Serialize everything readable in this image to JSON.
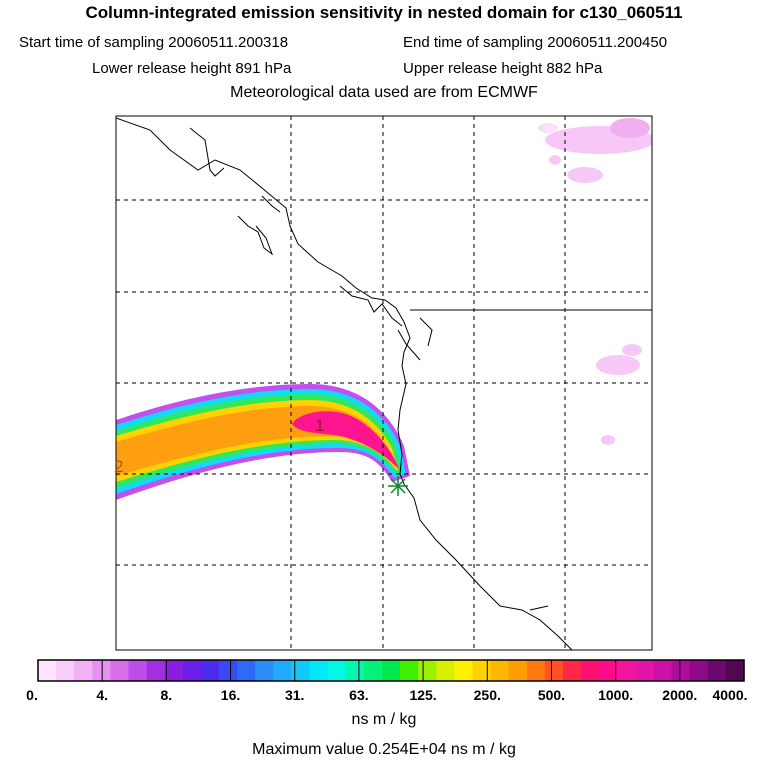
{
  "header": {
    "title": "Column-integrated emission sensitivity in nested domain for c130_060511",
    "sampling_start_label": "Start time of sampling 20060511.200318",
    "sampling_end_label": "End time of sampling 20060511.200450",
    "lower_release_label": "Lower release height  891 hPa",
    "upper_release_label": "Upper release height  882 hPa",
    "met_data_label": "Meteorological data used are from ECMWF"
  },
  "map": {
    "plume_markers": [
      "1",
      "2"
    ],
    "release_marker": "release-point-cross-icon"
  },
  "colorbar": {
    "colors": [
      "#fde3fd",
      "#f9cdf9",
      "#f3b2f5",
      "#e690f0",
      "#d66fe8",
      "#bb4fe8",
      "#a42ee0",
      "#8a1ee0",
      "#6a1ee6",
      "#4a2cee",
      "#3a4af2",
      "#2e6af5",
      "#2a8cf8",
      "#20aaf8",
      "#14c8f8",
      "#00e8f8",
      "#00f8e4",
      "#00f8b0",
      "#00f27a",
      "#00e850",
      "#40f000",
      "#9cf000",
      "#d6f000",
      "#fff000",
      "#ffd200",
      "#ffb800",
      "#ff9c00",
      "#ff7a10",
      "#ff5028",
      "#ff2848",
      "#ff1070",
      "#ff0c8c",
      "#f414a0",
      "#e414a8",
      "#cc10a8",
      "#b00c9c",
      "#8e0a88",
      "#6c0870",
      "#520850"
    ],
    "tick_labels": [
      "0.",
      "4.",
      "8.",
      "16.",
      "31.",
      "63.",
      "125.",
      "250.",
      "500.",
      "1000.",
      "2000.",
      "4000."
    ],
    "units": "ns m / kg",
    "max_value_label": "Maximum value  0.254E+04 ns m / kg"
  }
}
